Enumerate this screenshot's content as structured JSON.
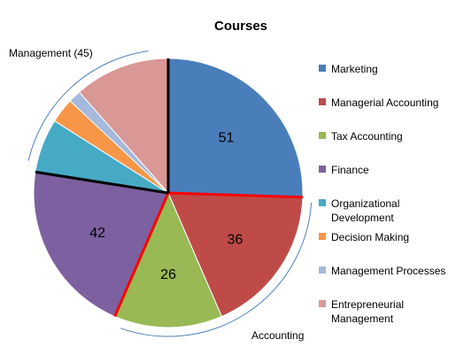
{
  "chart_data": {
    "type": "pie",
    "title": "Courses",
    "categories": [
      "Marketing",
      "Managerial Accounting",
      "Tax Accounting",
      "Finance",
      "Organizational Development",
      "Decision Making",
      "Management Processes",
      "Entrepreneurial Management"
    ],
    "legend_lines": [
      [
        "Marketing"
      ],
      [
        "Managerial Accounting"
      ],
      [
        "Tax Accounting"
      ],
      [
        "Finance"
      ],
      [
        "Organizational",
        "Development"
      ],
      [
        "Decision Making"
      ],
      [
        "Management Processes"
      ],
      [
        "Entrepreneurial",
        "Management"
      ]
    ],
    "values": [
      51,
      36,
      26,
      42,
      13,
      6,
      3,
      23
    ],
    "data_labels": [
      "51",
      "36",
      "26",
      "42",
      "",
      "",
      "",
      ""
    ],
    "colors": [
      "#4A7EBB",
      "#BE4B48",
      "#98B954",
      "#7D60A0",
      "#46AAC5",
      "#F79646",
      "#A5B9DD",
      "#D99795"
    ],
    "legend_position": "right",
    "annotations": {
      "management": "Management (45)",
      "accounting": "Accounting"
    },
    "group_divider_colors": {
      "accounting": "#FF0000",
      "management": "#000000",
      "bracket": "#4F81BD"
    }
  }
}
